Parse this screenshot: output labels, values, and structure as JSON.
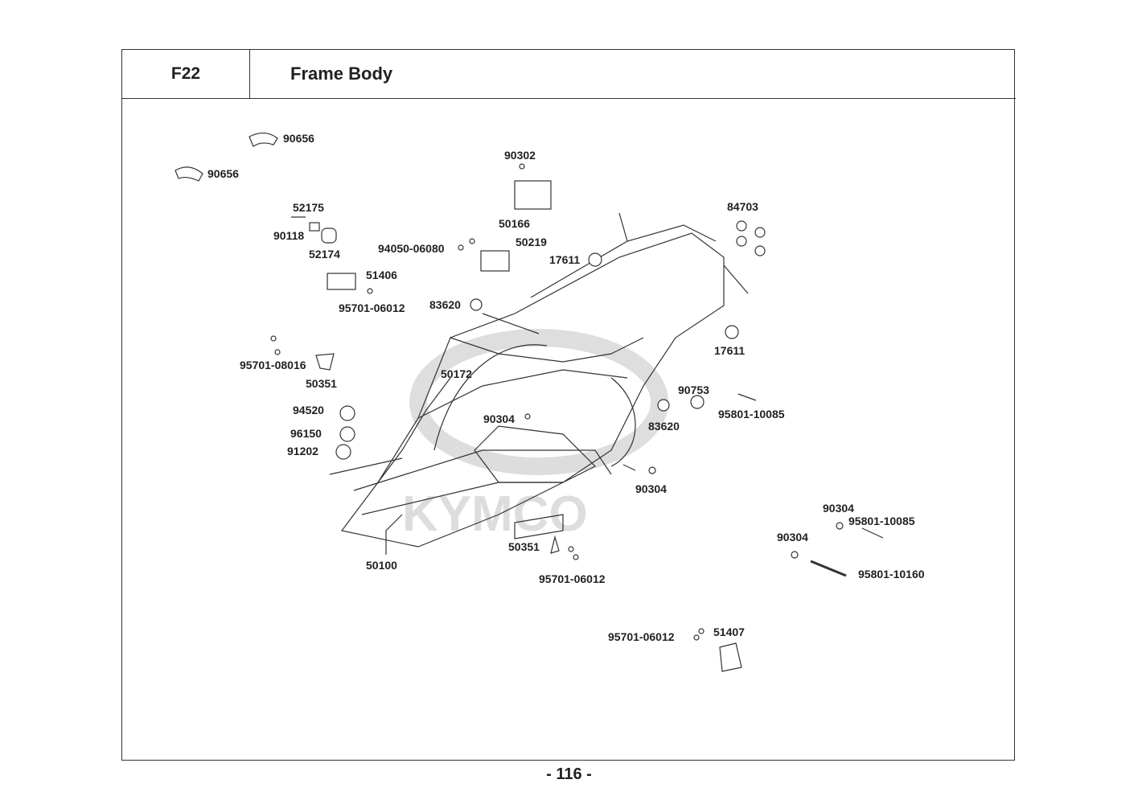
{
  "header": {
    "code": "F22",
    "title": "Frame Body"
  },
  "page_number": "- 116 -",
  "watermark": "KYMCO",
  "callouts": [
    "90656",
    "90656",
    "90302",
    "52175",
    "90118",
    "52174",
    "50166",
    "94050-06080",
    "50219",
    "17611",
    "84703",
    "51406",
    "95701-06012",
    "83620",
    "17611",
    "95701-08016",
    "50351",
    "50172",
    "90753",
    "95801-10085",
    "94520",
    "90304",
    "83620",
    "96150",
    "91202",
    "90304",
    "90304",
    "95801-10085",
    "90304",
    "50351",
    "50100",
    "95801-10160",
    "95701-06012",
    "95701-06012",
    "51407"
  ]
}
